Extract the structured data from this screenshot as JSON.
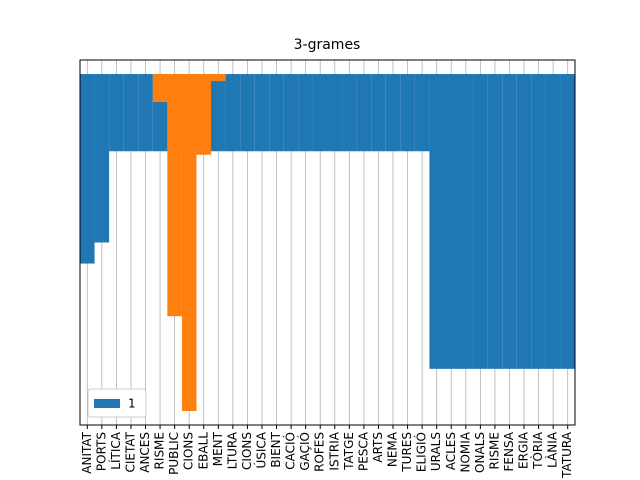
{
  "chart_data": {
    "type": "bar",
    "title": "3-grames",
    "categories": [
      "ANITAT",
      "PORTS",
      "LÍTICA",
      "CIETAT",
      "ANCES",
      "RISME",
      "PUBLIC",
      "CIONS",
      "EBALL",
      "MENT",
      "LTURA",
      "CIONS",
      "ÚSICA",
      "BIENT",
      "CACIÓ",
      "GAÇIÓ",
      "ROFES",
      "ISTRIA",
      "TATGE",
      "PESCA",
      "ARTS",
      "NEMA",
      "TURES",
      "ELIGIÓ",
      "URALS",
      "ACLES",
      "NOMIA",
      "ONALS",
      "RISME",
      "FENSA",
      "ERGIA",
      "TÒRIA",
      "LÀNIA",
      "TATURA"
    ],
    "series": [
      {
        "name": "1",
        "color": "#1f77b4",
        "values": [
          54,
          48,
          22,
          22,
          22,
          22,
          22,
          22,
          22,
          22,
          22,
          22,
          22,
          22,
          22,
          22,
          22,
          22,
          22,
          22,
          22,
          22,
          22,
          22,
          84,
          84,
          84,
          84,
          84,
          84,
          84,
          84,
          84,
          84
        ]
      },
      {
        "color": "#ff7f0e",
        "values": [
          null,
          null,
          null,
          null,
          null,
          8,
          69,
          96,
          23,
          2,
          null,
          null,
          null,
          null,
          null,
          null,
          null,
          null,
          null,
          null,
          null,
          null,
          null,
          null,
          null,
          null,
          null,
          null,
          null,
          null,
          null,
          null,
          null,
          null
        ]
      }
    ],
    "ylim": [
      -4,
      100
    ],
    "y_inverted": true,
    "grid": true,
    "legend": "lower left"
  }
}
